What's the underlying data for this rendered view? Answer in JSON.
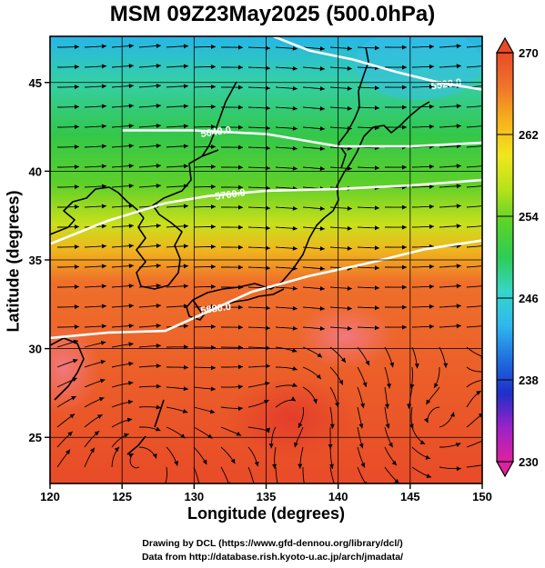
{
  "title": "MSM 09Z23May2025 (500.0hPa)",
  "xlabel": "Longitude (degrees)",
  "ylabel": "Latitude  (degrees)",
  "credits": [
    "Drawing by DCL (https://www.gfd-dennou.org/library/dcl/)",
    "Data from http://database.rish.kyoto-u.ac.jp/arch/jmadata/"
  ],
  "map": {
    "lon_range": [
      120,
      150
    ],
    "lat_range": [
      22.4,
      47.6
    ],
    "lon_ticks": [
      "120",
      "125",
      "130",
      "135",
      "140",
      "145",
      "150"
    ],
    "lat_ticks": [
      "25",
      "30",
      "35",
      "40",
      "45"
    ],
    "field": "temperature",
    "colors": {
      "warm": "#e84b28",
      "cold": "#3fc6e6",
      "mid": "#3cc83c",
      "contour": "#ffffff"
    },
    "contours": [
      {
        "label": "5880.0",
        "points": [
          [
            120,
            30.6
          ],
          [
            124,
            30.9
          ],
          [
            128,
            31.0
          ],
          [
            131,
            32.1
          ],
          [
            134,
            33.2
          ],
          [
            138,
            34.1
          ],
          [
            142,
            34.8
          ],
          [
            146,
            35.6
          ],
          [
            150,
            36.1
          ]
        ]
      },
      {
        "label": "5760.0",
        "points": [
          [
            120,
            35.9
          ],
          [
            124,
            37.2
          ],
          [
            128,
            38.2
          ],
          [
            131,
            38.6
          ],
          [
            135,
            38.9
          ],
          [
            140,
            39.0
          ],
          [
            145,
            39.2
          ],
          [
            150,
            39.5
          ]
        ]
      },
      {
        "label": "5640.0",
        "points": [
          [
            125,
            42.3
          ],
          [
            130,
            42.3
          ],
          [
            135,
            42.1
          ],
          [
            140,
            41.4
          ],
          [
            145,
            41.4
          ],
          [
            150,
            41.6
          ]
        ]
      },
      {
        "label": "5520.0",
        "points": [
          [
            135.5,
            47.6
          ],
          [
            138,
            46.8
          ],
          [
            141,
            46.3
          ],
          [
            144,
            45.6
          ],
          [
            147,
            45.0
          ],
          [
            150,
            44.6
          ]
        ]
      }
    ],
    "contour_label_lon": [
      131.5,
      132.5,
      131.5,
      147.5
    ]
  },
  "colorbar": {
    "min": 230,
    "max": 270,
    "tick_labels": [
      "270",
      "262",
      "254",
      "246",
      "238",
      "230"
    ],
    "stops": [
      "#e0219e",
      "#9b22c8",
      "#1f2fc8",
      "#1f6fe0",
      "#2fb8ee",
      "#36d6c8",
      "#2ecc55",
      "#5ad22a",
      "#b8e21a",
      "#f1e61e",
      "#f6b21c",
      "#f0742a",
      "#e84b28"
    ]
  }
}
